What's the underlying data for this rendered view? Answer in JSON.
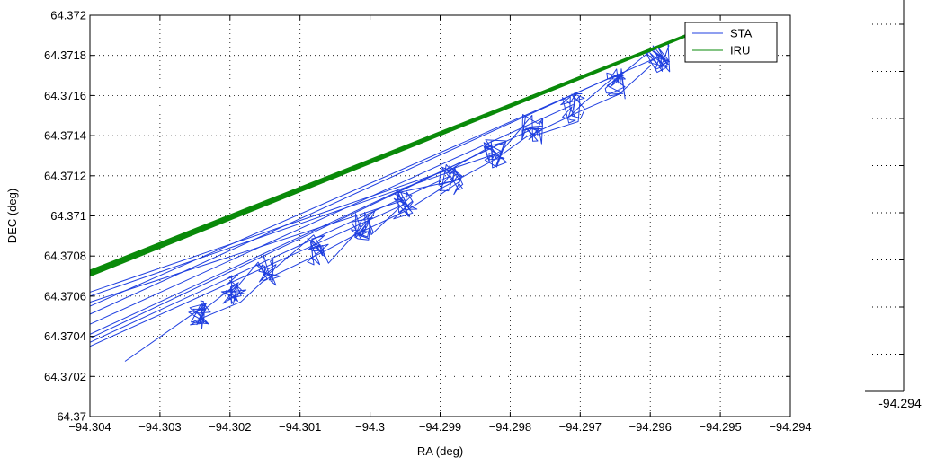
{
  "chart_data": {
    "type": "line",
    "title": "",
    "xlabel": "RA (deg)",
    "ylabel": "DEC (deg)",
    "xlim": [
      -94.304,
      -94.294
    ],
    "ylim": [
      64.37,
      64.372
    ],
    "grid": true,
    "legend_position": "top-right",
    "x_ticks": [
      -94.304,
      -94.303,
      -94.302,
      -94.301,
      -94.3,
      -94.299,
      -94.298,
      -94.297,
      -94.296,
      -94.295,
      -94.294
    ],
    "x_tick_labels": [
      "−94.304",
      "−94.303",
      "−94.302",
      "−94.301",
      "−94.3",
      "−94.299",
      "−94.298",
      "−94.297",
      "−94.296",
      "−94.295",
      "−94.294"
    ],
    "y_ticks": [
      64.37,
      64.3702,
      64.3704,
      64.3706,
      64.3708,
      64.371,
      64.3712,
      64.3714,
      64.3716,
      64.3718,
      64.372
    ],
    "y_tick_labels": [
      "64.37",
      "64.3702",
      "64.3704",
      "64.3706",
      "64.3708",
      "64.371",
      "64.3712",
      "64.3714",
      "64.3716",
      "64.3718",
      "64.372"
    ],
    "series": [
      {
        "name": "STA",
        "color": "#1f3fe0",
        "clusters": [
          [
            -94.30245,
            64.370515
          ],
          [
            -94.30195,
            64.37063
          ],
          [
            -94.30145,
            64.37073
          ],
          [
            -94.30075,
            64.37083
          ],
          [
            -94.3001,
            64.370955
          ],
          [
            -94.2995,
            64.37106
          ],
          [
            -94.29885,
            64.37118
          ],
          [
            -94.2982,
            64.37131
          ],
          [
            -94.2977,
            64.37143
          ],
          [
            -94.2971,
            64.371535
          ],
          [
            -94.2965,
            64.37166
          ],
          [
            -94.2959,
            64.37179
          ]
        ],
        "tail_start": [
          -94.3035,
          64.370275
        ],
        "left_ends": [
          [
            -94.304,
            64.37035
          ],
          [
            -94.304,
            64.37037
          ],
          [
            -94.304,
            64.37039
          ],
          [
            -94.304,
            64.37041
          ],
          [
            -94.304,
            64.37046
          ],
          [
            -94.304,
            64.37051
          ],
          [
            -94.304,
            64.37055
          ],
          [
            -94.304,
            64.37057
          ],
          [
            -94.304,
            64.3706
          ],
          [
            -94.304,
            64.37062
          ]
        ]
      },
      {
        "name": "IRU",
        "color": "#0a8a0a",
        "start": [
          -94.304,
          64.3707
        ],
        "end": [
          -94.29545,
          64.3719
        ],
        "band_offsets": [
          0,
          4e-06,
          8e-06,
          1.2e-05,
          1.6e-05,
          2e-05,
          2.4e-05,
          2.8e-05
        ]
      }
    ]
  },
  "right_panel": {
    "tick_label": "-94.294",
    "tick_count": 8
  }
}
